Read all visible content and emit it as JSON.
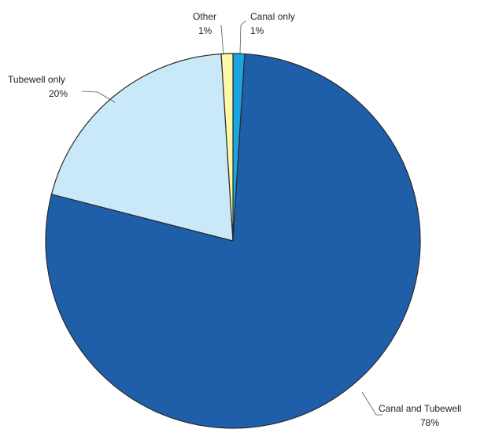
{
  "chart_data": {
    "type": "pie",
    "categories": [
      "Canal only",
      "Canal and Tubewell",
      "Tubewell only",
      "Other"
    ],
    "values": [
      1,
      78,
      20,
      1
    ],
    "value_labels": [
      "1%",
      "78%",
      "20%",
      "1%"
    ],
    "colors": [
      "#1ba6e2",
      "#1f5ea8",
      "#c9e9f9",
      "#fff8a6"
    ]
  }
}
